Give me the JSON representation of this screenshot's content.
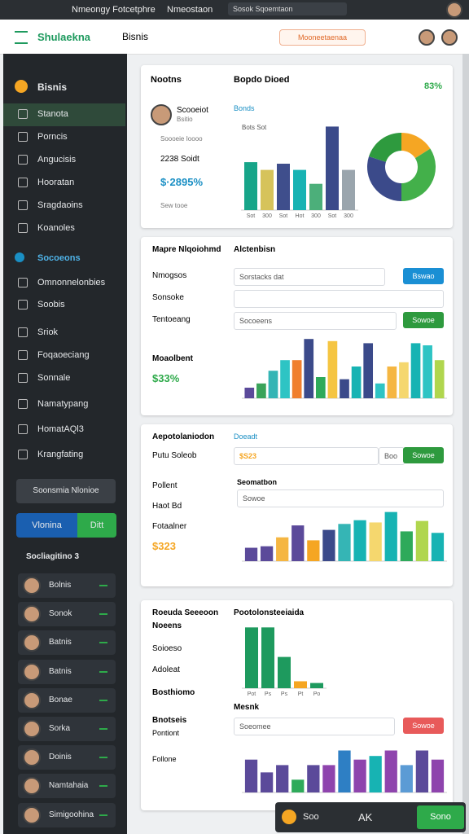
{
  "topbar": {
    "title": "Nmeongy Fotcetphre",
    "crumb": "Nmeostaon",
    "search": "Sosok Sqoemtaon"
  },
  "header": {
    "app": "Shulaekna",
    "search": "Bisnis",
    "button": "Mooneetaenaa"
  },
  "sidebar": {
    "brand": "Bisnis",
    "items": [
      "Stanota",
      "Porncis",
      "Angucisis",
      "Hooratan",
      "Sragdaoins",
      "Koanoles"
    ],
    "section": "Socoeons",
    "items2": [
      "Omnonnelonbies",
      "Soobis"
    ],
    "items3": [
      "Sriok",
      "Foqaoeciang",
      "Sonnale"
    ],
    "items4": [
      "Namatypang",
      "HomatAQl3",
      "Krangfating"
    ],
    "cta": "Soonsmia Nlonioe",
    "toggle_on": "Vlonina",
    "toggle_off": "Ditt",
    "group": "Socliagitino 3",
    "people": [
      "Bolnis",
      "Sonok",
      "Batnis",
      "Batnis",
      "Bonae",
      "Sorka",
      "Doinis",
      "Namtahaia",
      "Simigoohina"
    ]
  },
  "card1": {
    "title": "Nootns",
    "subtitle": "Bopdo Dioed",
    "stat": "83%",
    "name": "Scooeiot",
    "role": "Bsitio",
    "line1": "Soooeie Ioooo",
    "line2": "2238 Soidt",
    "amount": "$·2895%",
    "note": "Sew tooe",
    "chart_title": "Bonds",
    "legend": "Bots Sot",
    "chart": {
      "type": "bar",
      "categories": [
        "Sot",
        "300",
        "Sot",
        "Hot",
        "300",
        "Sot",
        "300"
      ],
      "values": [
        62,
        52,
        60,
        52,
        34,
        108,
        52
      ],
      "colors": [
        "#17a589",
        "#d6c35b",
        "#3f4e8c",
        "#17b3b3",
        "#4caf7a",
        "#3b4a8a",
        "#9aa5ad"
      ],
      "ylim": [
        0,
        120
      ]
    },
    "donut": {
      "type": "pie",
      "values": [
        16,
        34,
        30,
        20
      ],
      "colors": [
        "#f5a623",
        "#43b04a",
        "#3b4a8a",
        "#2e9a3e"
      ]
    }
  },
  "card2": {
    "title": "Mapre Nlqoiohmd",
    "subtitle": "Alctenbisn",
    "row1": "Nmogsos",
    "input1": "Sorstacks dat",
    "btn1": "Bswao",
    "row2": "Sonsoke",
    "row3": "Tentoeang",
    "input3": "Socoeens",
    "btn3": "Sowoe",
    "metric": "Moaolbent",
    "value": "$33%",
    "chart": {
      "type": "bar",
      "values": [
        10,
        14,
        26,
        36,
        36,
        56,
        20,
        54,
        18,
        30,
        52,
        14,
        30,
        34,
        52,
        50,
        36
      ],
      "colors": [
        "#5b4a9a",
        "#3aa35a",
        "#35b5b5",
        "#2ec4c4",
        "#f07f2e",
        "#3b4a8a",
        "#2eaa5a",
        "#f5c542",
        "#3b4a8a",
        "#17b3b3",
        "#3b4a8a",
        "#2ec4c4",
        "#f5b642",
        "#f5d76e",
        "#17b3b3",
        "#2ec4c4",
        "#b0d64e"
      ],
      "ylim": [
        0,
        60
      ]
    }
  },
  "card3": {
    "title": "Aepotolaniodon",
    "link": "Doeadt",
    "row1": "Putu Soleob",
    "amount": "$S23",
    "btn1": "Boo",
    "btn2": "Sowoe",
    "row2": "Pollent",
    "row3": "Haot Bd",
    "row4": "Fotaalner",
    "value": "$323",
    "chart_title": "Seomatbon",
    "dropdown": "Sowoe",
    "chart": {
      "type": "bar",
      "values": [
        18,
        20,
        32,
        48,
        28,
        42,
        50,
        55,
        52,
        66,
        40,
        54,
        38
      ],
      "colors": [
        "#5b4a9a",
        "#5b4a9a",
        "#f5b642",
        "#5b4a9a",
        "#f5a623",
        "#3b4a8a",
        "#35b5b5",
        "#17b3b3",
        "#f5d76e",
        "#17b3b3",
        "#2eaa5a",
        "#b0d64e",
        "#17b3b3"
      ],
      "ylim": [
        0,
        70
      ]
    }
  },
  "card4": {
    "title": "Roeuda Seeeoon",
    "subtitle": "Pootolonsteeiaida",
    "row1": "Noeens",
    "row2": "Soioeso",
    "row3": "Adoleat",
    "row4": "Bosthiomo",
    "row5": "Bnotseis",
    "row6": "Pontiont",
    "row7": "Follone",
    "chart2_title": "Mesnk",
    "dropdown": "Soeomee",
    "btn": "Sowoe",
    "chart": {
      "type": "bar",
      "categories": [
        "Pot",
        "Ps",
        "Ps",
        "Pt",
        "Po"
      ],
      "values": [
        70,
        70,
        36,
        8,
        6
      ],
      "colors": [
        "#1e9a5e",
        "#1e9a5e",
        "#1e9a5e",
        "#f5a623",
        "#1e9a5e"
      ],
      "ylim": [
        0,
        75
      ]
    },
    "chart2": {
      "type": "bar",
      "values": [
        36,
        22,
        30,
        14,
        30,
        30,
        46,
        36,
        40,
        46,
        30,
        46,
        36
      ],
      "colors": [
        "#5b4a9a",
        "#5b4a9a",
        "#5b4a9a",
        "#2eaa5a",
        "#5b4a9a",
        "#8e44ad",
        "#2e7fc4",
        "#8e44ad",
        "#17b3b3",
        "#8e44ad",
        "#5b9bd5",
        "#5b4a9a",
        "#8e44ad"
      ],
      "ylim": [
        0,
        50
      ]
    }
  },
  "toolbar": {
    "a": "Soo",
    "b": "AK",
    "send": "Sono"
  }
}
